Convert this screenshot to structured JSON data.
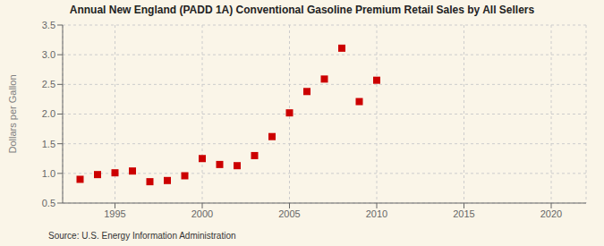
{
  "chart_data": {
    "type": "scatter",
    "title": "Annual New England (PADD 1A) Conventional Gasoline Premium Retail Sales by All Sellers",
    "ylabel": "Dollars per Gallon",
    "annotations": [
      "Source: U.S. Energy Information Administration"
    ],
    "x": [
      1993,
      1994,
      1995,
      1996,
      1997,
      1998,
      1999,
      2000,
      2001,
      2002,
      2003,
      2004,
      2005,
      2006,
      2007,
      2008,
      2009,
      2010
    ],
    "values": [
      0.9,
      0.98,
      1.01,
      1.04,
      0.86,
      0.88,
      0.96,
      1.25,
      1.15,
      1.13,
      1.3,
      1.62,
      2.02,
      2.38,
      2.59,
      3.11,
      2.21,
      2.57
    ],
    "xlim": [
      1992,
      2022
    ],
    "ylim": [
      0.5,
      3.5
    ],
    "xticks": [
      1995,
      2000,
      2005,
      2010,
      2015,
      2020
    ],
    "yticks": [
      0.5,
      {
        "value": 1.0,
        "label": "1.0"
      },
      1.5,
      {
        "value": 2.0,
        "label": "2.0"
      },
      2.5,
      {
        "value": 3.0,
        "label": "3.0"
      },
      3.5
    ],
    "color": "#cc0000",
    "marker": "square",
    "grid": true
  }
}
